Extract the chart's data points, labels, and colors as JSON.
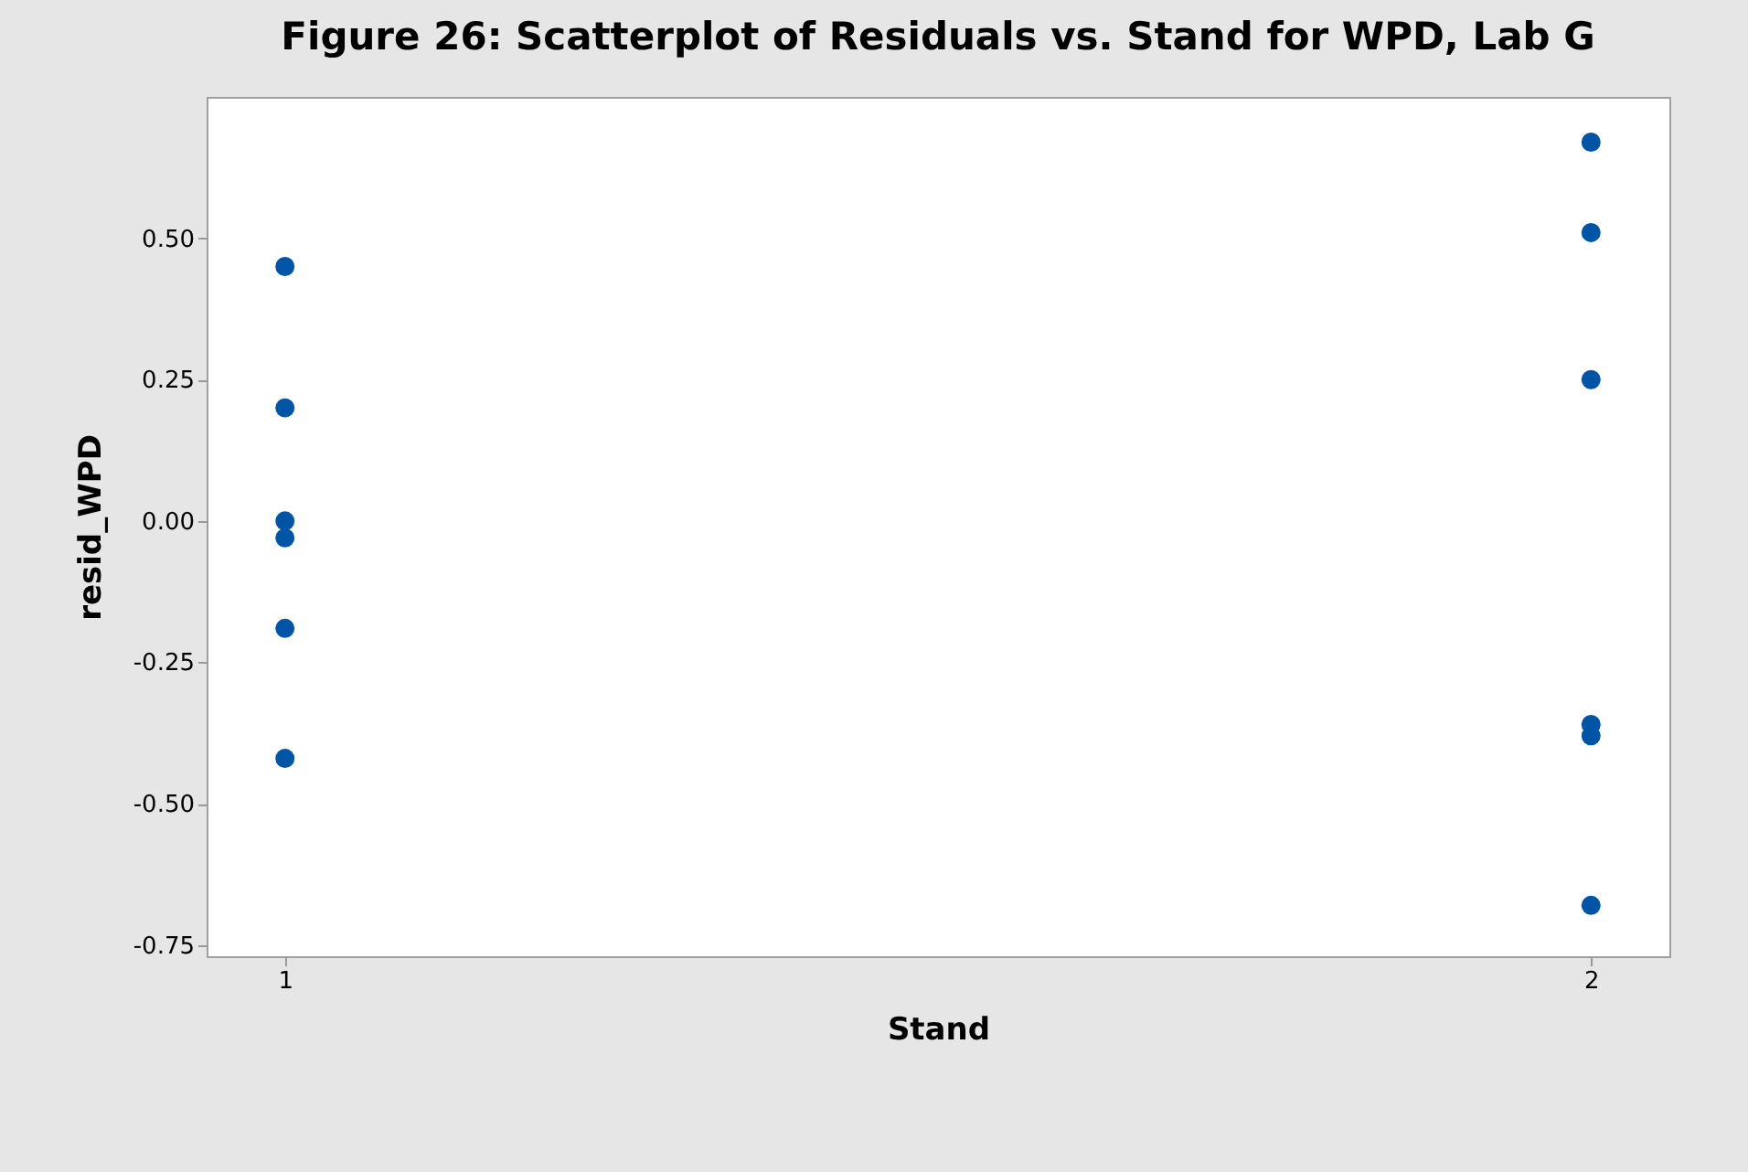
{
  "chart_data": {
    "type": "scatter",
    "title": "Figure 26: Scatterplot of Residuals vs. Stand for WPD, Lab G",
    "xlabel": "Stand",
    "ylabel": "resid_WPD",
    "categories": [
      "1",
      "2"
    ],
    "series": [
      {
        "color": "#0054a6",
        "x": [
          "1",
          "1",
          "1",
          "1",
          "1",
          "1",
          "2",
          "2",
          "2",
          "2",
          "2",
          "2"
        ],
        "values": [
          0.45,
          0.2,
          0.0,
          -0.03,
          -0.19,
          -0.42,
          0.67,
          0.51,
          0.25,
          -0.36,
          -0.38,
          -0.68
        ]
      }
    ],
    "ylim": [
      -0.77,
      0.75
    ],
    "yticks": [
      {
        "value": -0.75,
        "label": "-0.75"
      },
      {
        "value": -0.5,
        "label": "-0.50"
      },
      {
        "value": -0.25,
        "label": "-0.25"
      },
      {
        "value": 0,
        "label": "0.00"
      },
      {
        "value": 0.25,
        "label": "0.25"
      },
      {
        "value": 0.5,
        "label": "0.50"
      }
    ],
    "marker": "circle",
    "grid": false,
    "legend": false
  }
}
